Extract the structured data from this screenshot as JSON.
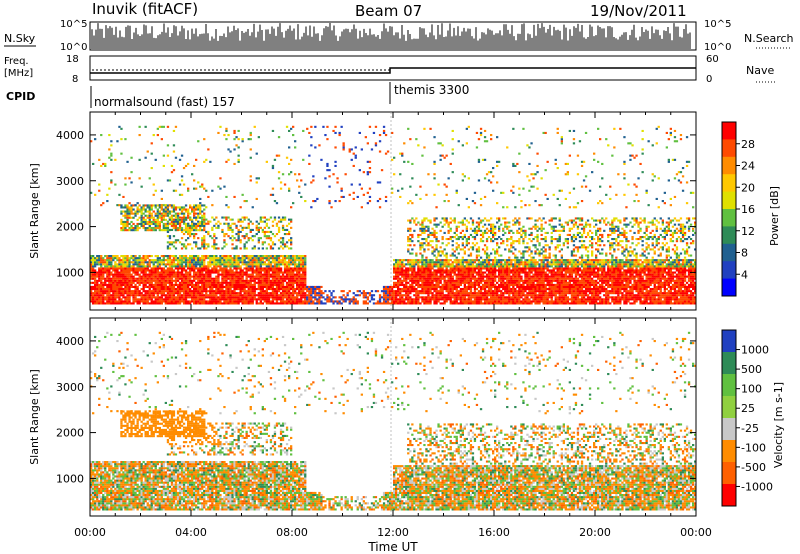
{
  "header": {
    "station": "Inuvik (fitACF)",
    "beam": "Beam 07",
    "date": "19/Nov/2011"
  },
  "top_panels": {
    "nsky_label": "N.Sky",
    "nsky_ticks": [
      "10^5",
      "10^0"
    ],
    "nsearch_label": "N.Search",
    "nsearch_ticks": [
      "10^5",
      "10^0"
    ],
    "freq_label": "Freq.",
    "freq_unit": "[MHz]",
    "freq_ticks": [
      "18",
      "8"
    ],
    "nave_label": "Nave",
    "nave_ticks": [
      "60",
      "0"
    ],
    "cpid_label": "CPID",
    "cpid_segments": [
      {
        "name": "normalsound (fast) 157",
        "start_hour": 0,
        "end_hour": 12
      },
      {
        "name": "themis 3300",
        "start_hour": 12,
        "end_hour": 24
      }
    ]
  },
  "chart_data": [
    {
      "type": "heatmap",
      "name": "power-panel",
      "ylabel": "Slant Range [km]",
      "xlim": [
        0,
        24
      ],
      "ylim": [
        180,
        4500
      ],
      "yticks": [
        "1000",
        "2000",
        "3000",
        "4000"
      ],
      "colorbar": {
        "label": "Power [dB]",
        "ticks": [
          "28",
          "24",
          "20",
          "16",
          "12",
          "8",
          "4"
        ],
        "colors": [
          "#ff0000",
          "#ff4a00",
          "#ff8c00",
          "#ffc800",
          "#e0e000",
          "#60c040",
          "#2e8b57",
          "#206090",
          "#2040c0",
          "#0000ff"
        ]
      }
    },
    {
      "type": "heatmap",
      "name": "velocity-panel",
      "ylabel": "Slant Range [km]",
      "xlabel": "Time UT",
      "xlim": [
        0,
        24
      ],
      "ylim": [
        180,
        4500
      ],
      "yticks": [
        "1000",
        "2000",
        "3000",
        "4000"
      ],
      "xticks": [
        "00:00",
        "04:00",
        "08:00",
        "12:00",
        "16:00",
        "20:00",
        "00:00"
      ],
      "colorbar": {
        "label": "Velocity [m s-1]",
        "ticks": [
          "1000",
          "500",
          "100",
          "25",
          "-25",
          "-100",
          "-500",
          "-1000"
        ],
        "colors": [
          "#2040c0",
          "#2e8b57",
          "#60c040",
          "#90d040",
          "#c8c8c8",
          "#ff8c00",
          "#ff6000",
          "#ff0000"
        ]
      }
    }
  ]
}
